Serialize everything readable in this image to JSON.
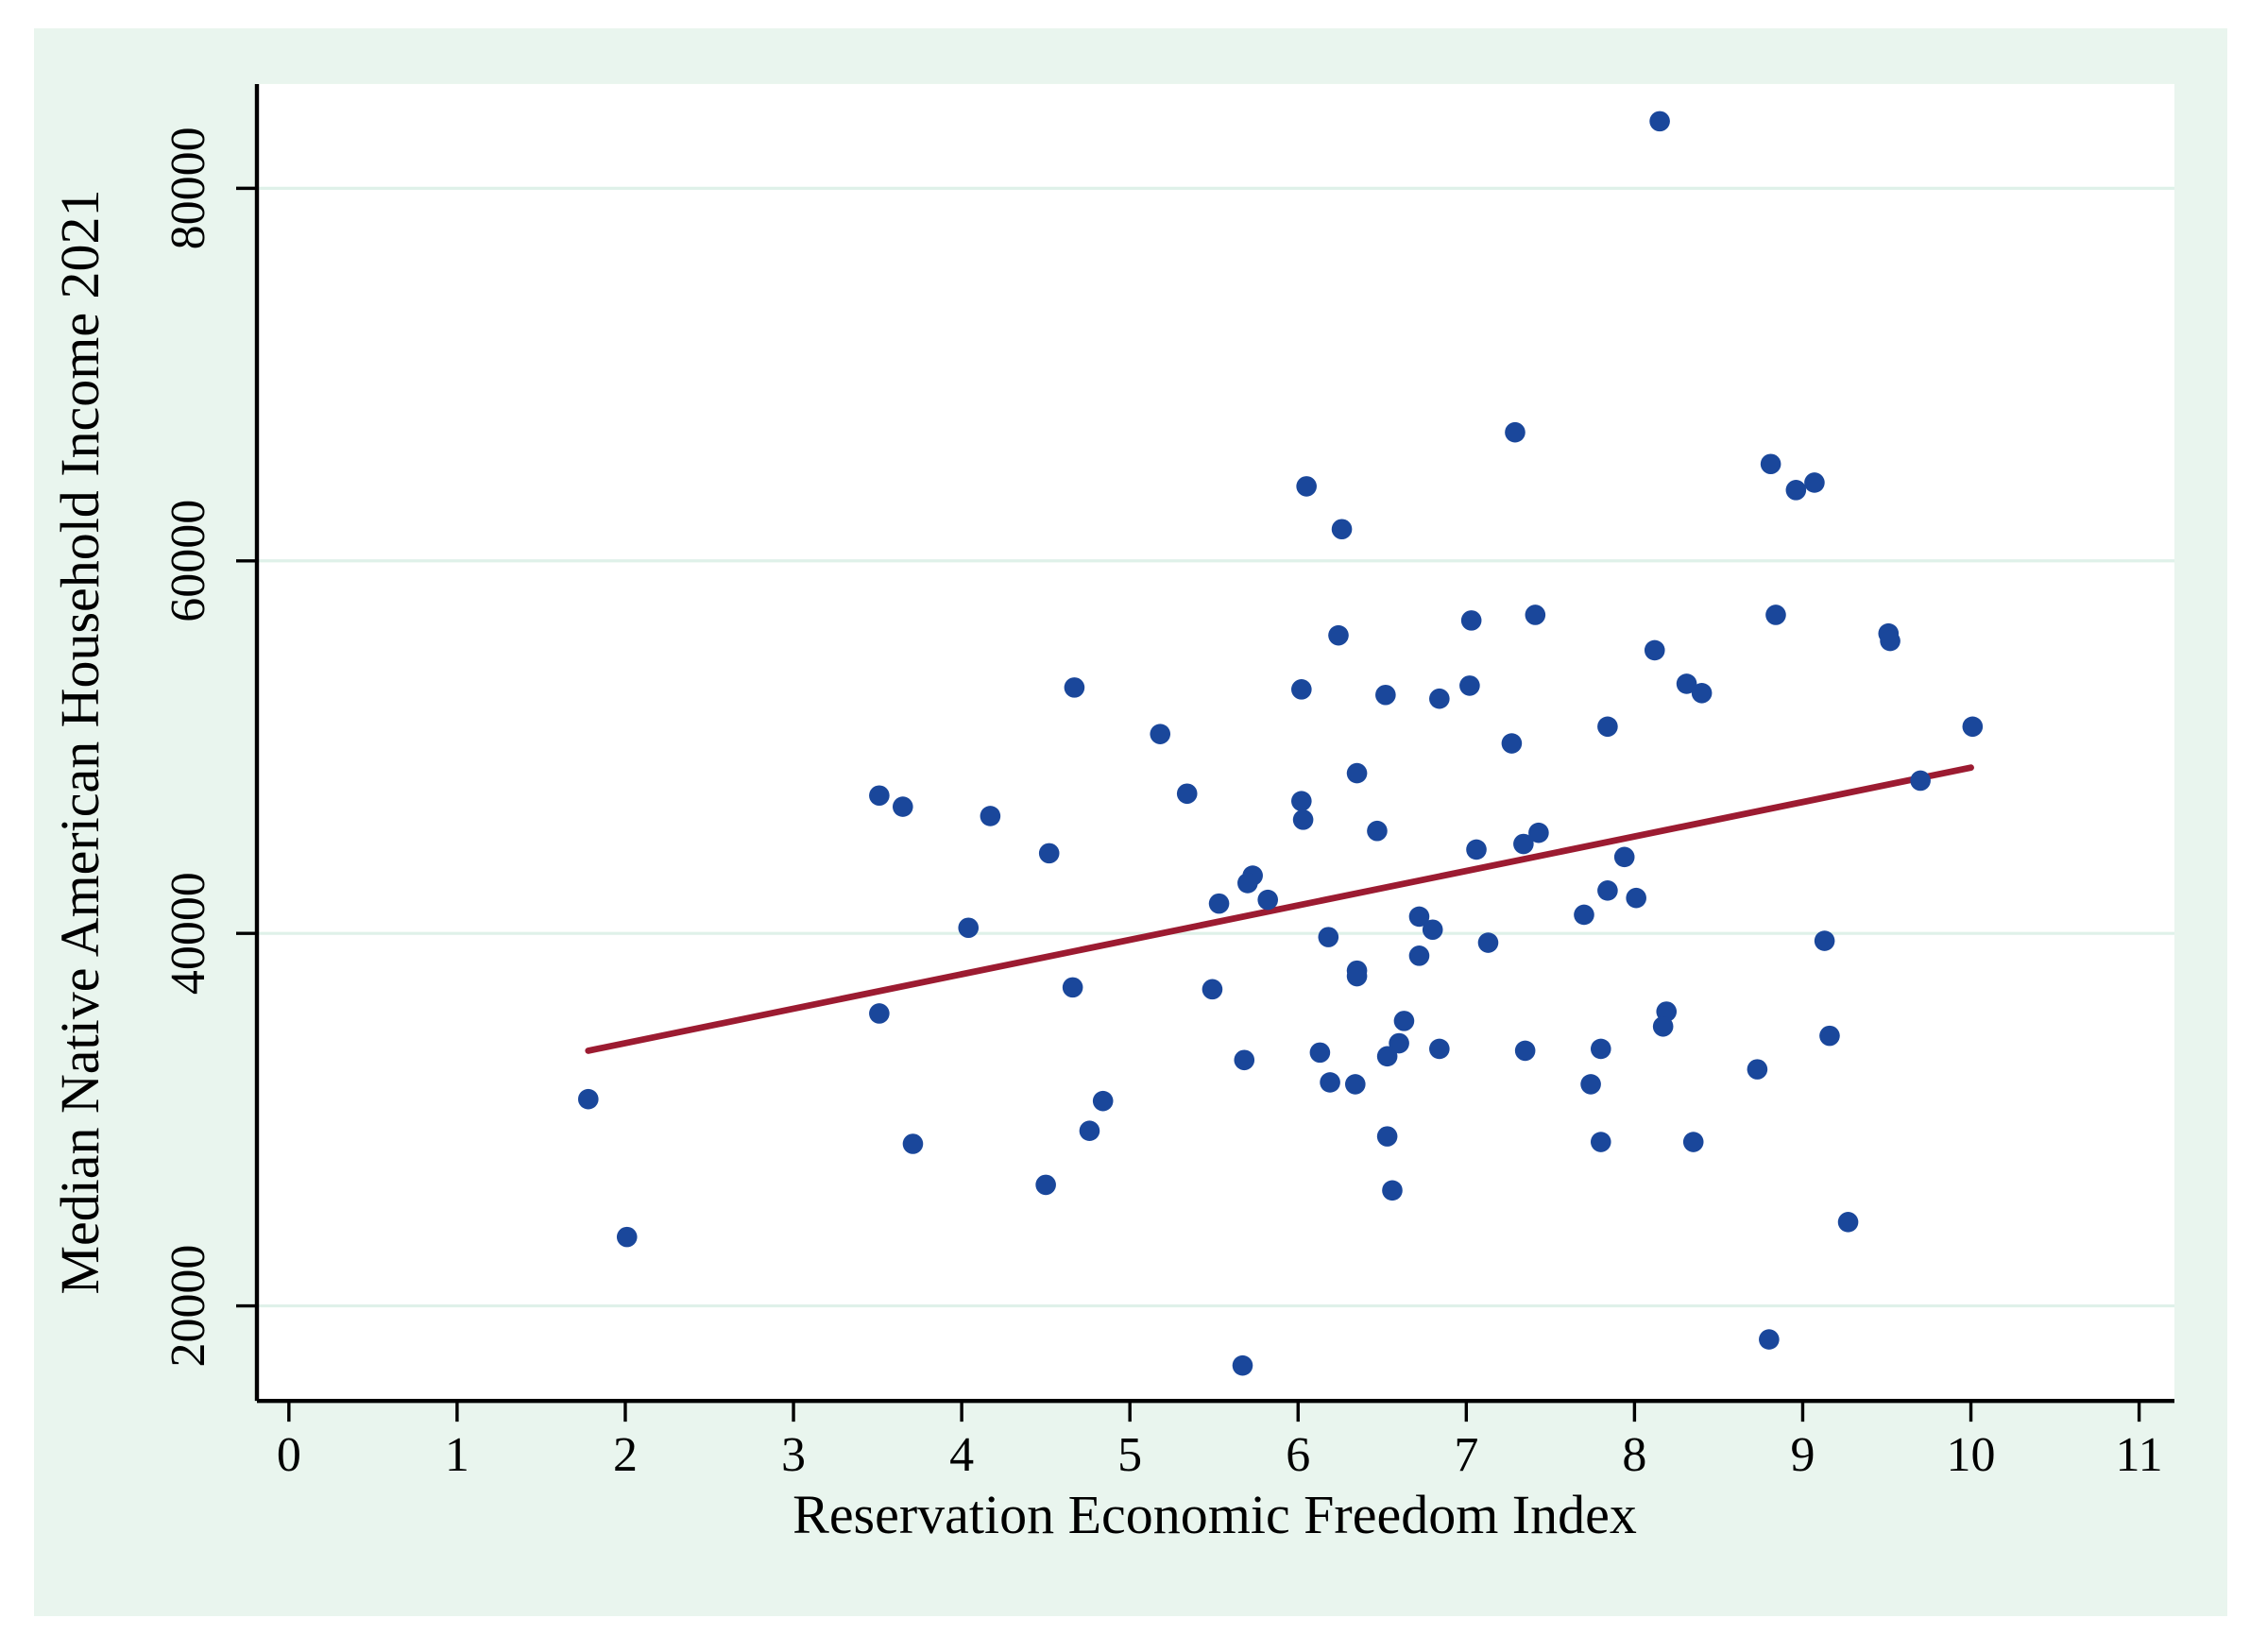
{
  "figure": {
    "background": "#e9f5ee",
    "plot_background": "#ffffff",
    "grid_color": "#dff1e9",
    "axis_color": "#000000",
    "point_color": "#1a479b",
    "trend_color": "#9c1b31"
  },
  "chart_data": {
    "type": "scatter",
    "title": "",
    "xlabel": "Reservation Economic Freedom Index",
    "ylabel": "Median Native American Household Income 2021",
    "x_ticks": [
      0,
      1,
      2,
      3,
      4,
      5,
      6,
      7,
      8,
      9,
      10,
      11
    ],
    "y_ticks": [
      20000,
      40000,
      60000,
      80000
    ],
    "xlim": [
      -0.19,
      11.21
    ],
    "ylim": [
      14900,
      85600
    ],
    "grid": "horizontal-gridlines-only",
    "legend_position": "none",
    "points": [
      [
        8.15,
        83600
      ],
      [
        7.29,
        66900
      ],
      [
        6.05,
        64000
      ],
      [
        6.26,
        61700
      ],
      [
        8.81,
        65200
      ],
      [
        8.96,
        63800
      ],
      [
        9.07,
        64200
      ],
      [
        7.41,
        57100
      ],
      [
        7.03,
        56800
      ],
      [
        6.24,
        56000
      ],
      [
        8.84,
        57100
      ],
      [
        9.51,
        56100
      ],
      [
        9.52,
        55700
      ],
      [
        8.12,
        55200
      ],
      [
        4.67,
        53200
      ],
      [
        6.02,
        53100
      ],
      [
        6.52,
        52800
      ],
      [
        6.84,
        52600
      ],
      [
        7.02,
        53300
      ],
      [
        8.31,
        53400
      ],
      [
        8.4,
        52900
      ],
      [
        7.84,
        51100
      ],
      [
        10.01,
        51100
      ],
      [
        5.18,
        50700
      ],
      [
        7.27,
        50200
      ],
      [
        6.35,
        48600
      ],
      [
        9.7,
        48200
      ],
      [
        3.51,
        47400
      ],
      [
        3.65,
        46800
      ],
      [
        4.17,
        46300
      ],
      [
        5.34,
        47500
      ],
      [
        6.02,
        47100
      ],
      [
        6.03,
        46100
      ],
      [
        6.47,
        45500
      ],
      [
        7.43,
        45400
      ],
      [
        7.34,
        44800
      ],
      [
        7.06,
        44500
      ],
      [
        4.52,
        44300
      ],
      [
        7.94,
        44100
      ],
      [
        5.73,
        43100
      ],
      [
        5.7,
        42700
      ],
      [
        7.84,
        42300
      ],
      [
        5.82,
        41800
      ],
      [
        8.01,
        41900
      ],
      [
        5.53,
        41600
      ],
      [
        7.7,
        41000
      ],
      [
        6.72,
        40900
      ],
      [
        6.8,
        40200
      ],
      [
        4.04,
        40300
      ],
      [
        6.18,
        39800
      ],
      [
        7.13,
        39500
      ],
      [
        9.13,
        39600
      ],
      [
        6.72,
        38800
      ],
      [
        6.35,
        38000
      ],
      [
        6.35,
        37700
      ],
      [
        4.66,
        37100
      ],
      [
        5.49,
        37000
      ],
      [
        8.19,
        35800
      ],
      [
        3.51,
        35700
      ],
      [
        6.63,
        35300
      ],
      [
        8.17,
        35000
      ],
      [
        9.16,
        34500
      ],
      [
        6.6,
        34100
      ],
      [
        7.8,
        33800
      ],
      [
        6.53,
        33400
      ],
      [
        6.13,
        33600
      ],
      [
        6.84,
        33800
      ],
      [
        7.35,
        33700
      ],
      [
        5.68,
        33200
      ],
      [
        8.73,
        32700
      ],
      [
        7.74,
        31900
      ],
      [
        6.19,
        32000
      ],
      [
        6.34,
        31900
      ],
      [
        1.78,
        31100
      ],
      [
        4.84,
        31000
      ],
      [
        4.76,
        29400
      ],
      [
        6.53,
        29100
      ],
      [
        3.71,
        28700
      ],
      [
        7.8,
        28800
      ],
      [
        8.35,
        28800
      ],
      [
        4.5,
        26500
      ],
      [
        6.56,
        26200
      ],
      [
        9.27,
        24500
      ],
      [
        2.01,
        23700
      ],
      [
        8.8,
        18200
      ],
      [
        5.67,
        16800
      ]
    ],
    "trend_line": {
      "x1": 1.78,
      "y1": 33700,
      "x2": 10.0,
      "y2": 48900
    }
  }
}
